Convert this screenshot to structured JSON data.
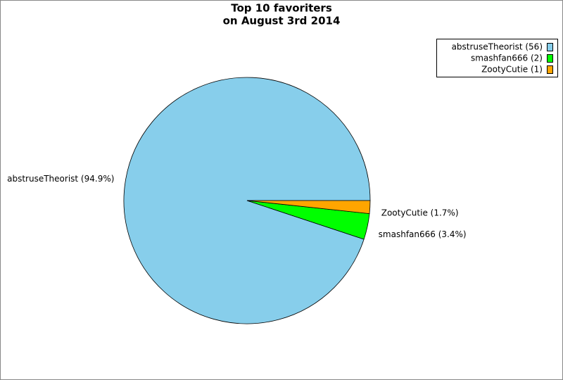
{
  "chart_data": {
    "type": "pie",
    "title": [
      "Top 10 favoriters",
      "on August 3rd 2014"
    ],
    "categories": [
      "abstruseTheorist",
      "smashfan666",
      "ZootyCutie"
    ],
    "values": [
      56,
      2,
      1
    ],
    "value_labels": [
      "abstruseTheorist (56)",
      "smashfan666 (2)",
      "ZootyCutie (1)"
    ],
    "slice_labels": [
      "abstruseTheorist (94.9%)",
      "smashfan666 (3.4%)",
      "ZootyCutie (1.7%)"
    ],
    "colors": [
      "#87ceeb",
      "#00ff00",
      "#ffa500"
    ],
    "legend": "top-right"
  }
}
